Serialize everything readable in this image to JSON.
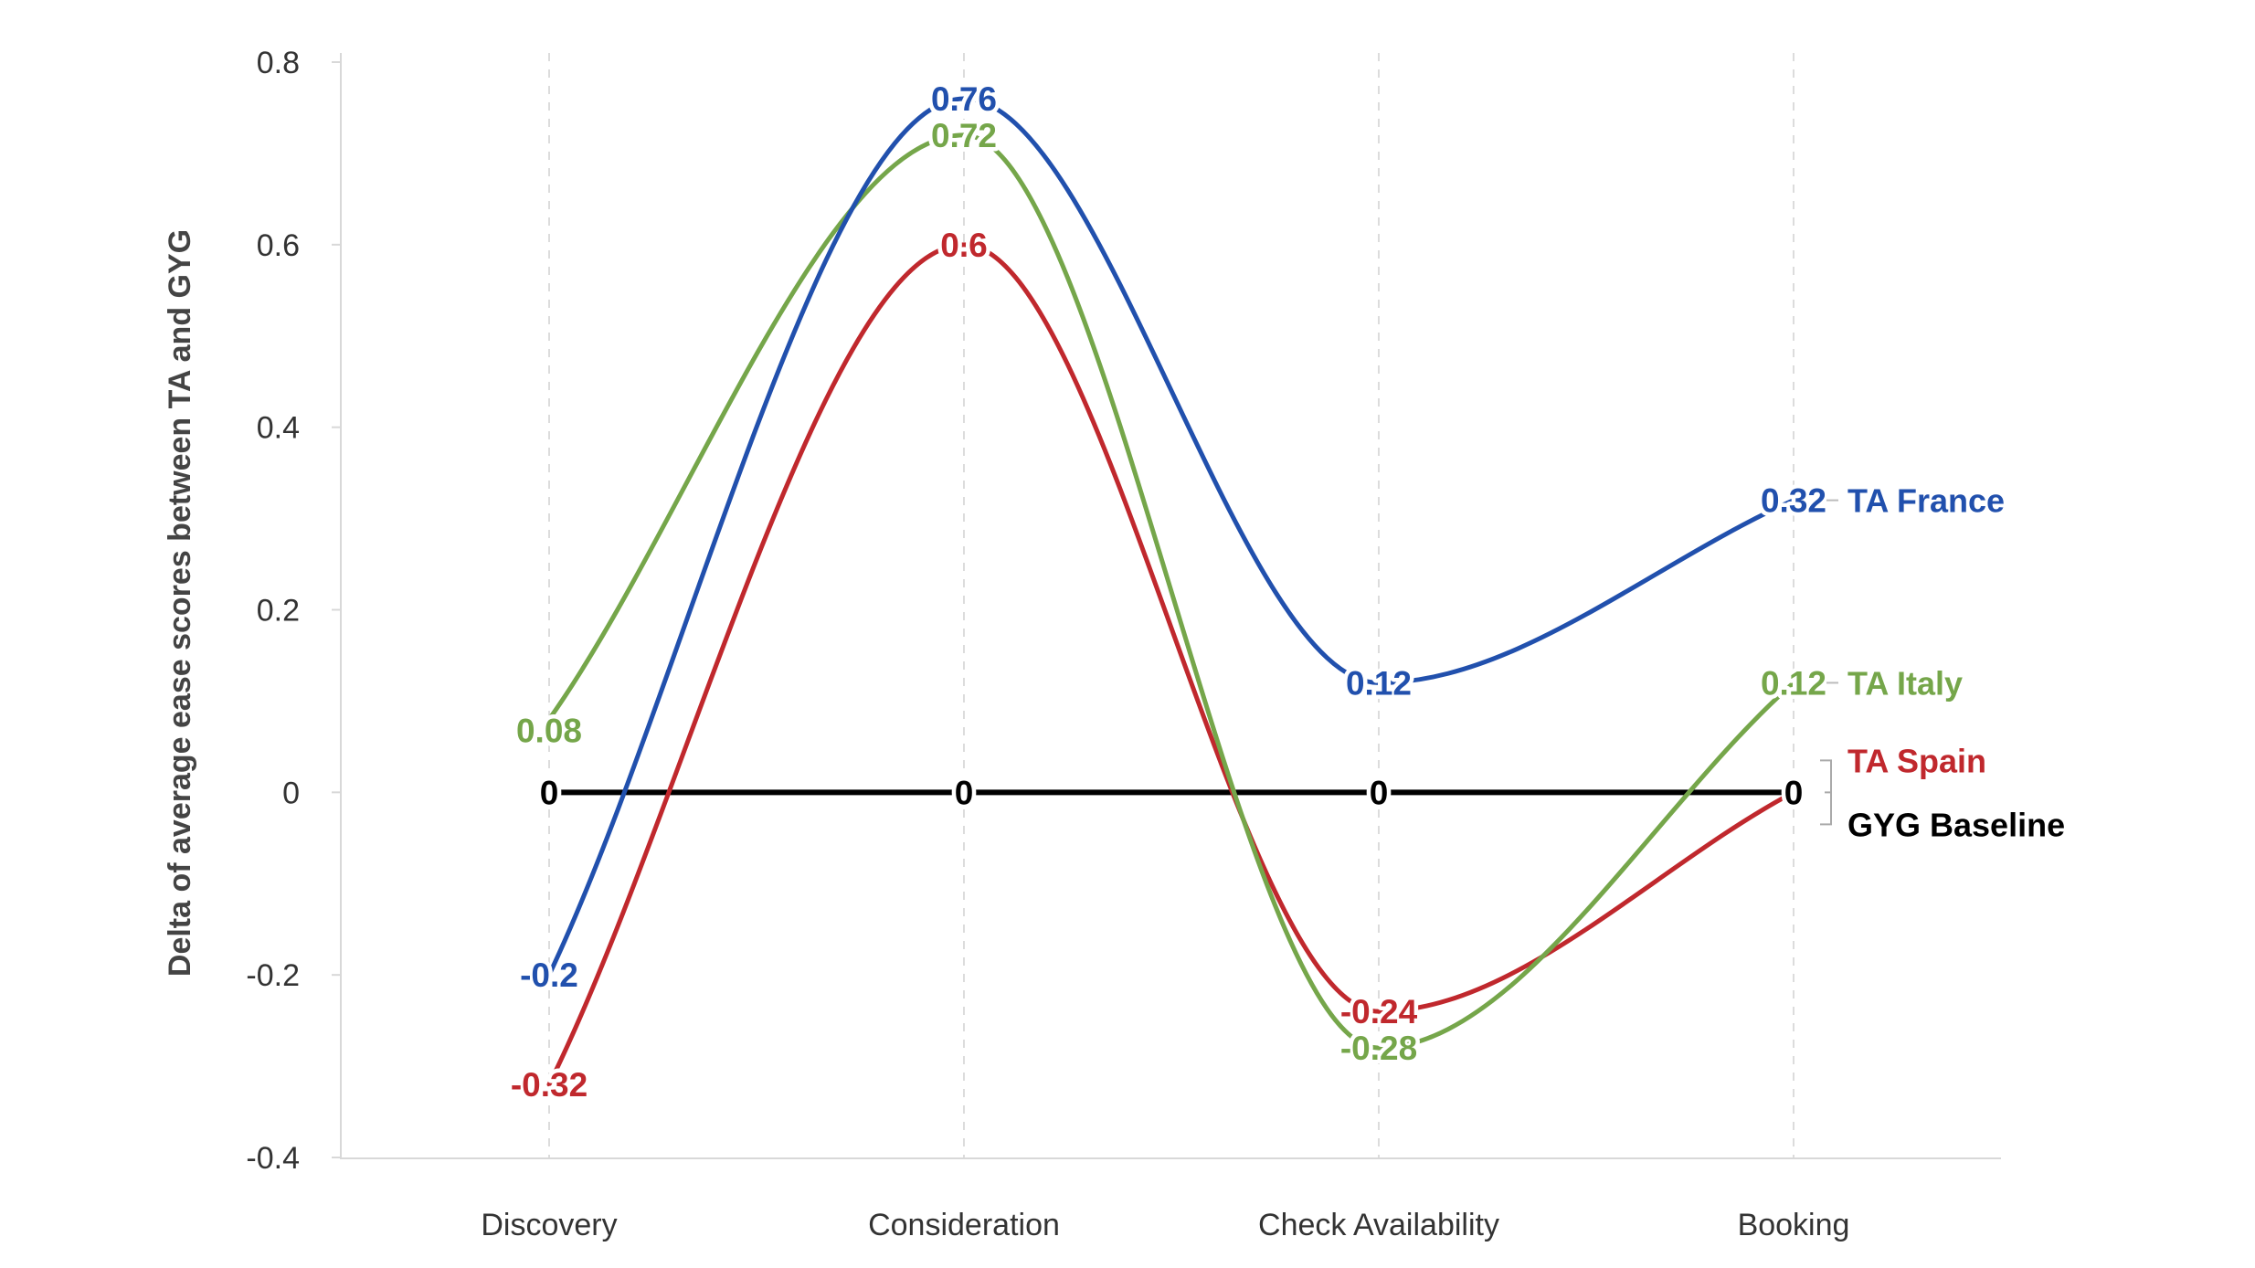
{
  "chart_data": {
    "type": "line",
    "title": "",
    "xlabel": "",
    "ylabel": "Delta of average ease scores between TA and GYG",
    "categories": [
      "Discovery",
      "Consideration",
      "Check Availability",
      "Booking"
    ],
    "ylim": [
      -0.4,
      0.8
    ],
    "yticks": [
      0.8,
      0.6,
      0.4,
      0.2,
      0,
      -0.2,
      -0.4
    ],
    "ytick_labels": [
      "0.8",
      "0.6",
      "0.4",
      "0.2",
      "0",
      "-0.2",
      "-0.4"
    ],
    "grid": "vertical dashed",
    "legend": "right, inline at line ends",
    "series": [
      {
        "name": "GYG Baseline",
        "color": "#000000",
        "values": [
          0,
          0,
          0,
          0
        ],
        "labels": [
          "0",
          "0",
          "0",
          "0"
        ]
      },
      {
        "name": "TA Spain",
        "color": "#C0282D",
        "values": [
          -0.32,
          0.6,
          -0.24,
          0
        ],
        "labels": [
          "-0.32",
          "0.6",
          "-0.24",
          ""
        ]
      },
      {
        "name": "TA Italy",
        "color": "#75A64A",
        "values": [
          0.08,
          0.72,
          -0.28,
          0.12
        ],
        "labels": [
          "0.08",
          "0.72",
          "-0.28",
          "0.12"
        ]
      },
      {
        "name": "TA France",
        "color": "#2150AD",
        "values": [
          -0.2,
          0.76,
          0.12,
          0.32
        ],
        "labels": [
          "-0.2",
          "0.76",
          "0.12",
          "0.32"
        ]
      }
    ]
  }
}
